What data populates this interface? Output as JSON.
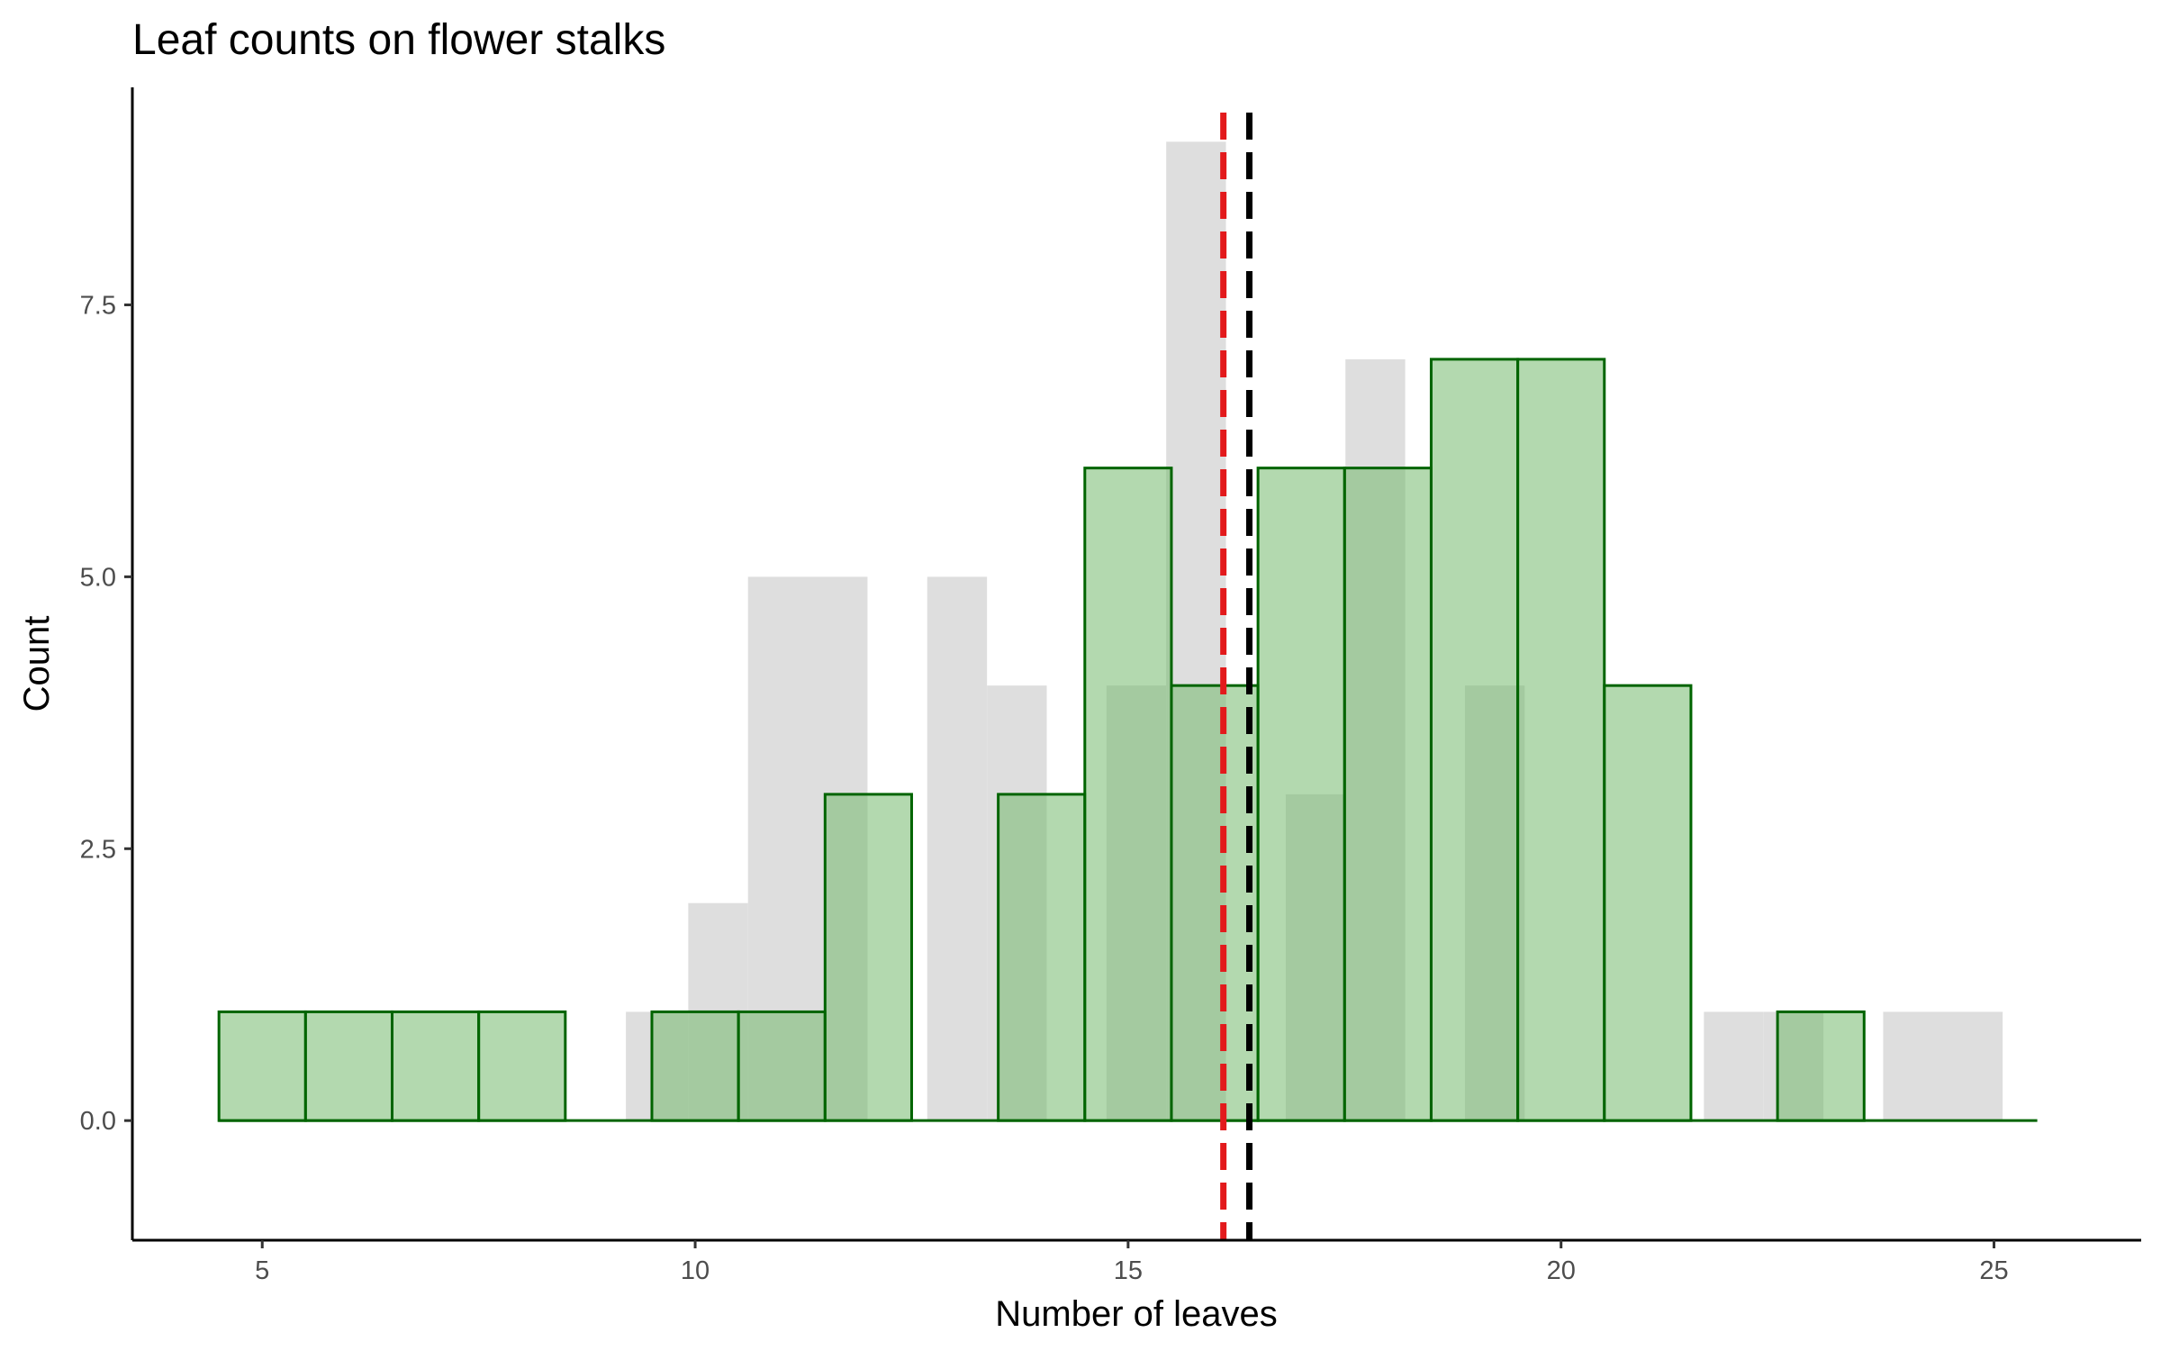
{
  "chart_data": {
    "type": "bar",
    "title": "Leaf counts on flower stalks",
    "xlabel": "Number of leaves",
    "ylabel": "Count",
    "xlim": [
      3.5,
      26.7
    ],
    "ylim": [
      -1.1,
      9.5
    ],
    "x_ticks": [
      "5",
      "10",
      "15",
      "20",
      "25"
    ],
    "y_ticks": [
      "0.0",
      "2.5",
      "5.0",
      "7.5"
    ],
    "grid": false,
    "legend": "none",
    "series": [
      {
        "fill": "#dedede",
        "bins": [
          {
            "x0": 9.2,
            "x1": 9.92,
            "value": 1
          },
          {
            "x0": 9.92,
            "x1": 10.61,
            "value": 2
          },
          {
            "x0": 10.61,
            "x1": 11.99,
            "value": 5
          },
          {
            "x0": 12.68,
            "x1": 13.37,
            "value": 5
          },
          {
            "x0": 13.37,
            "x1": 14.06,
            "value": 4
          },
          {
            "x0": 14.75,
            "x1": 15.44,
            "value": 4
          },
          {
            "x0": 15.44,
            "x1": 16.13,
            "value": 9
          },
          {
            "x0": 16.82,
            "x1": 17.51,
            "value": 3
          },
          {
            "x0": 17.51,
            "x1": 18.2,
            "value": 7
          },
          {
            "x0": 18.89,
            "x1": 19.58,
            "value": 4
          },
          {
            "x0": 21.65,
            "x1": 22.34,
            "value": 1
          },
          {
            "x0": 22.34,
            "x1": 23.03,
            "value": 1
          },
          {
            "x0": 23.72,
            "x1": 25.1,
            "value": 1
          }
        ]
      },
      {
        "fill": "#74b96e",
        "stroke": "#006400",
        "bins": [
          {
            "x0": 4.5,
            "x1": 5.5,
            "value": 1
          },
          {
            "x0": 5.5,
            "x1": 6.5,
            "value": 1
          },
          {
            "x0": 6.5,
            "x1": 7.5,
            "value": 1
          },
          {
            "x0": 7.5,
            "x1": 8.5,
            "value": 1
          },
          {
            "x0": 8.5,
            "x1": 9.5,
            "value": 0
          },
          {
            "x0": 9.5,
            "x1": 10.5,
            "value": 1
          },
          {
            "x0": 10.5,
            "x1": 11.5,
            "value": 1
          },
          {
            "x0": 11.5,
            "x1": 12.5,
            "value": 3
          },
          {
            "x0": 12.5,
            "x1": 13.5,
            "value": 0
          },
          {
            "x0": 13.5,
            "x1": 14.5,
            "value": 3
          },
          {
            "x0": 14.5,
            "x1": 15.5,
            "value": 6
          },
          {
            "x0": 15.5,
            "x1": 16.5,
            "value": 4
          },
          {
            "x0": 16.5,
            "x1": 17.5,
            "value": 6
          },
          {
            "x0": 17.5,
            "x1": 18.5,
            "value": 6
          },
          {
            "x0": 18.5,
            "x1": 19.5,
            "value": 7
          },
          {
            "x0": 19.5,
            "x1": 20.5,
            "value": 7
          },
          {
            "x0": 20.5,
            "x1": 21.5,
            "value": 4
          },
          {
            "x0": 21.5,
            "x1": 22.5,
            "value": 0
          },
          {
            "x0": 22.5,
            "x1": 23.5,
            "value": 1
          },
          {
            "x0": 23.5,
            "x1": 24.5,
            "value": 0
          },
          {
            "x0": 24.5,
            "x1": 25.5,
            "value": 0
          }
        ]
      }
    ],
    "reference_lines": [
      {
        "x": 16.1,
        "color": "#e31a1c",
        "style": "dashed"
      },
      {
        "x": 16.4,
        "color": "#000000",
        "style": "dashed"
      }
    ]
  }
}
